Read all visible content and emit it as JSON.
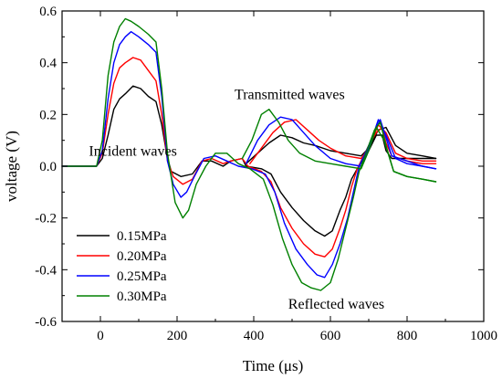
{
  "chart_data": {
    "type": "line",
    "title": "",
    "xlabel": "Time (μs)",
    "ylabel": "voltage (V)",
    "xlim": [
      -100,
      1000
    ],
    "ylim": [
      -0.6,
      0.6
    ],
    "xticks": [
      0,
      200,
      400,
      600,
      800,
      1000
    ],
    "yticks": [
      -0.6,
      -0.4,
      -0.2,
      0.0,
      0.2,
      0.4,
      0.6
    ],
    "xtick_labels": [
      "0",
      "200",
      "400",
      "600",
      "800",
      "1000"
    ],
    "ytick_labels": [
      "-0.6",
      "-0.4",
      "-0.2",
      "0.0",
      "0.2",
      "0.4",
      "0.6"
    ],
    "grid": false,
    "legend_position": "bottom-left",
    "annotations": [
      {
        "text": "Incident waves",
        "x": -30,
        "y": 0.04
      },
      {
        "text": "Transmitted waves",
        "x": 350,
        "y": 0.26
      },
      {
        "text": "Reflected waves",
        "x": 490,
        "y": -0.55
      }
    ],
    "series": [
      {
        "name": "0.15MPa",
        "color": "#000000",
        "incident": [
          [
            -100,
            0
          ],
          [
            -10,
            0
          ],
          [
            5,
            0.03
          ],
          [
            20,
            0.12
          ],
          [
            35,
            0.22
          ],
          [
            50,
            0.26
          ],
          [
            65,
            0.28
          ],
          [
            85,
            0.31
          ],
          [
            105,
            0.3
          ],
          [
            125,
            0.27
          ],
          [
            145,
            0.25
          ],
          [
            160,
            0.16
          ],
          [
            175,
            0.03
          ],
          [
            185,
            -0.02
          ],
          [
            210,
            -0.04
          ],
          [
            240,
            -0.03
          ],
          [
            265,
            0.02
          ],
          [
            290,
            0.02
          ],
          [
            320,
            0.0
          ],
          [
            340,
            0.02
          ],
          [
            370,
            0.03
          ],
          [
            380,
            0.0
          ],
          [
            420,
            -0.01
          ],
          [
            445,
            -0.03
          ],
          [
            470,
            -0.1
          ],
          [
            500,
            -0.16
          ],
          [
            530,
            -0.21
          ],
          [
            560,
            -0.25
          ],
          [
            585,
            -0.27
          ],
          [
            605,
            -0.25
          ],
          [
            625,
            -0.17
          ],
          [
            640,
            -0.12
          ],
          [
            655,
            -0.05
          ],
          [
            670,
            -0.01
          ],
          [
            700,
            0.06
          ],
          [
            720,
            0.12
          ],
          [
            735,
            0.12
          ],
          [
            745,
            0.06
          ],
          [
            760,
            0.03
          ],
          [
            800,
            0.03
          ],
          [
            840,
            0.03
          ],
          [
            875,
            0.03
          ]
        ],
        "transmitted": [
          [
            380,
            0.01
          ],
          [
            410,
            0.05
          ],
          [
            440,
            0.09
          ],
          [
            470,
            0.12
          ],
          [
            500,
            0.11
          ],
          [
            530,
            0.09
          ],
          [
            560,
            0.08
          ],
          [
            600,
            0.06
          ],
          [
            640,
            0.05
          ],
          [
            680,
            0.04
          ],
          [
            700,
            0.07
          ],
          [
            725,
            0.14
          ],
          [
            745,
            0.15
          ],
          [
            770,
            0.08
          ],
          [
            800,
            0.05
          ],
          [
            840,
            0.04
          ],
          [
            875,
            0.03
          ]
        ]
      },
      {
        "name": "0.20MPa",
        "color": "#ff0000",
        "incident": [
          [
            -100,
            0
          ],
          [
            -10,
            0
          ],
          [
            5,
            0.05
          ],
          [
            20,
            0.2
          ],
          [
            35,
            0.32
          ],
          [
            50,
            0.38
          ],
          [
            65,
            0.4
          ],
          [
            85,
            0.42
          ],
          [
            105,
            0.41
          ],
          [
            125,
            0.37
          ],
          [
            145,
            0.33
          ],
          [
            160,
            0.2
          ],
          [
            175,
            0.02
          ],
          [
            190,
            -0.04
          ],
          [
            215,
            -0.07
          ],
          [
            240,
            -0.05
          ],
          [
            265,
            0.02
          ],
          [
            290,
            0.03
          ],
          [
            320,
            0.01
          ],
          [
            340,
            0.02
          ],
          [
            370,
            0.03
          ],
          [
            385,
            0.0
          ],
          [
            420,
            -0.02
          ],
          [
            445,
            -0.06
          ],
          [
            470,
            -0.16
          ],
          [
            500,
            -0.24
          ],
          [
            530,
            -0.3
          ],
          [
            560,
            -0.34
          ],
          [
            585,
            -0.35
          ],
          [
            605,
            -0.32
          ],
          [
            625,
            -0.24
          ],
          [
            640,
            -0.17
          ],
          [
            655,
            -0.08
          ],
          [
            670,
            -0.01
          ],
          [
            700,
            0.08
          ],
          [
            720,
            0.13
          ],
          [
            735,
            0.15
          ],
          [
            745,
            0.09
          ],
          [
            760,
            0.04
          ],
          [
            800,
            0.02
          ],
          [
            840,
            0.01
          ],
          [
            875,
            0.01
          ]
        ],
        "transmitted": [
          [
            390,
            0.01
          ],
          [
            420,
            0.07
          ],
          [
            450,
            0.13
          ],
          [
            480,
            0.17
          ],
          [
            510,
            0.18
          ],
          [
            540,
            0.14
          ],
          [
            570,
            0.1
          ],
          [
            600,
            0.07
          ],
          [
            640,
            0.04
          ],
          [
            680,
            0.03
          ],
          [
            700,
            0.07
          ],
          [
            725,
            0.16
          ],
          [
            745,
            0.13
          ],
          [
            770,
            0.05
          ],
          [
            800,
            0.03
          ],
          [
            840,
            0.02
          ],
          [
            875,
            0.02
          ]
        ]
      },
      {
        "name": "0.25MPa",
        "color": "#0000ff",
        "incident": [
          [
            -100,
            0
          ],
          [
            -10,
            0
          ],
          [
            5,
            0.06
          ],
          [
            20,
            0.26
          ],
          [
            35,
            0.4
          ],
          [
            50,
            0.47
          ],
          [
            65,
            0.5
          ],
          [
            80,
            0.52
          ],
          [
            100,
            0.5
          ],
          [
            125,
            0.47
          ],
          [
            145,
            0.44
          ],
          [
            160,
            0.27
          ],
          [
            175,
            0.02
          ],
          [
            190,
            -0.07
          ],
          [
            210,
            -0.12
          ],
          [
            225,
            -0.1
          ],
          [
            245,
            -0.04
          ],
          [
            270,
            0.03
          ],
          [
            300,
            0.04
          ],
          [
            330,
            0.02
          ],
          [
            360,
            0.0
          ],
          [
            395,
            -0.01
          ],
          [
            430,
            -0.03
          ],
          [
            455,
            -0.1
          ],
          [
            480,
            -0.22
          ],
          [
            510,
            -0.32
          ],
          [
            540,
            -0.38
          ],
          [
            565,
            -0.42
          ],
          [
            585,
            -0.43
          ],
          [
            605,
            -0.38
          ],
          [
            625,
            -0.3
          ],
          [
            645,
            -0.2
          ],
          [
            660,
            -0.1
          ],
          [
            675,
            0.0
          ],
          [
            700,
            0.08
          ],
          [
            720,
            0.15
          ],
          [
            730,
            0.18
          ],
          [
            745,
            0.11
          ],
          [
            760,
            0.04
          ],
          [
            800,
            0.02
          ],
          [
            840,
            0.0
          ],
          [
            875,
            -0.01
          ]
        ],
        "transmitted": [
          [
            380,
            0.01
          ],
          [
            410,
            0.1
          ],
          [
            440,
            0.16
          ],
          [
            470,
            0.19
          ],
          [
            500,
            0.18
          ],
          [
            530,
            0.13
          ],
          [
            560,
            0.08
          ],
          [
            600,
            0.03
          ],
          [
            640,
            0.01
          ],
          [
            680,
            0.0
          ],
          [
            700,
            0.07
          ],
          [
            725,
            0.18
          ],
          [
            745,
            0.12
          ],
          [
            770,
            0.03
          ],
          [
            800,
            0.01
          ],
          [
            840,
            0.0
          ],
          [
            875,
            -0.01
          ]
        ]
      },
      {
        "name": "0.30MPa",
        "color": "#008000",
        "incident": [
          [
            -100,
            0
          ],
          [
            -10,
            0
          ],
          [
            5,
            0.1
          ],
          [
            20,
            0.35
          ],
          [
            35,
            0.48
          ],
          [
            50,
            0.54
          ],
          [
            65,
            0.57
          ],
          [
            80,
            0.56
          ],
          [
            100,
            0.54
          ],
          [
            125,
            0.51
          ],
          [
            145,
            0.48
          ],
          [
            160,
            0.3
          ],
          [
            175,
            0.05
          ],
          [
            195,
            -0.14
          ],
          [
            215,
            -0.2
          ],
          [
            230,
            -0.17
          ],
          [
            250,
            -0.07
          ],
          [
            275,
            0.0
          ],
          [
            300,
            0.05
          ],
          [
            330,
            0.05
          ],
          [
            360,
            0.01
          ],
          [
            390,
            -0.01
          ],
          [
            425,
            -0.05
          ],
          [
            450,
            -0.15
          ],
          [
            475,
            -0.28
          ],
          [
            500,
            -0.38
          ],
          [
            525,
            -0.45
          ],
          [
            550,
            -0.47
          ],
          [
            575,
            -0.48
          ],
          [
            600,
            -0.45
          ],
          [
            620,
            -0.36
          ],
          [
            640,
            -0.24
          ],
          [
            660,
            -0.12
          ],
          [
            675,
            -0.02
          ],
          [
            700,
            0.08
          ],
          [
            715,
            0.14
          ],
          [
            730,
            0.17
          ],
          [
            745,
            0.08
          ],
          [
            765,
            -0.02
          ],
          [
            800,
            -0.04
          ],
          [
            840,
            -0.05
          ],
          [
            875,
            -0.06
          ]
        ],
        "transmitted": [
          [
            370,
            0.03
          ],
          [
            395,
            0.1
          ],
          [
            420,
            0.2
          ],
          [
            440,
            0.22
          ],
          [
            465,
            0.17
          ],
          [
            490,
            0.1
          ],
          [
            520,
            0.05
          ],
          [
            560,
            0.02
          ],
          [
            600,
            0.01
          ],
          [
            640,
            0.0
          ],
          [
            680,
            -0.01
          ],
          [
            700,
            0.06
          ],
          [
            720,
            0.15
          ],
          [
            740,
            0.1
          ],
          [
            765,
            -0.02
          ],
          [
            800,
            -0.04
          ],
          [
            840,
            -0.05
          ],
          [
            875,
            -0.06
          ]
        ]
      }
    ]
  }
}
